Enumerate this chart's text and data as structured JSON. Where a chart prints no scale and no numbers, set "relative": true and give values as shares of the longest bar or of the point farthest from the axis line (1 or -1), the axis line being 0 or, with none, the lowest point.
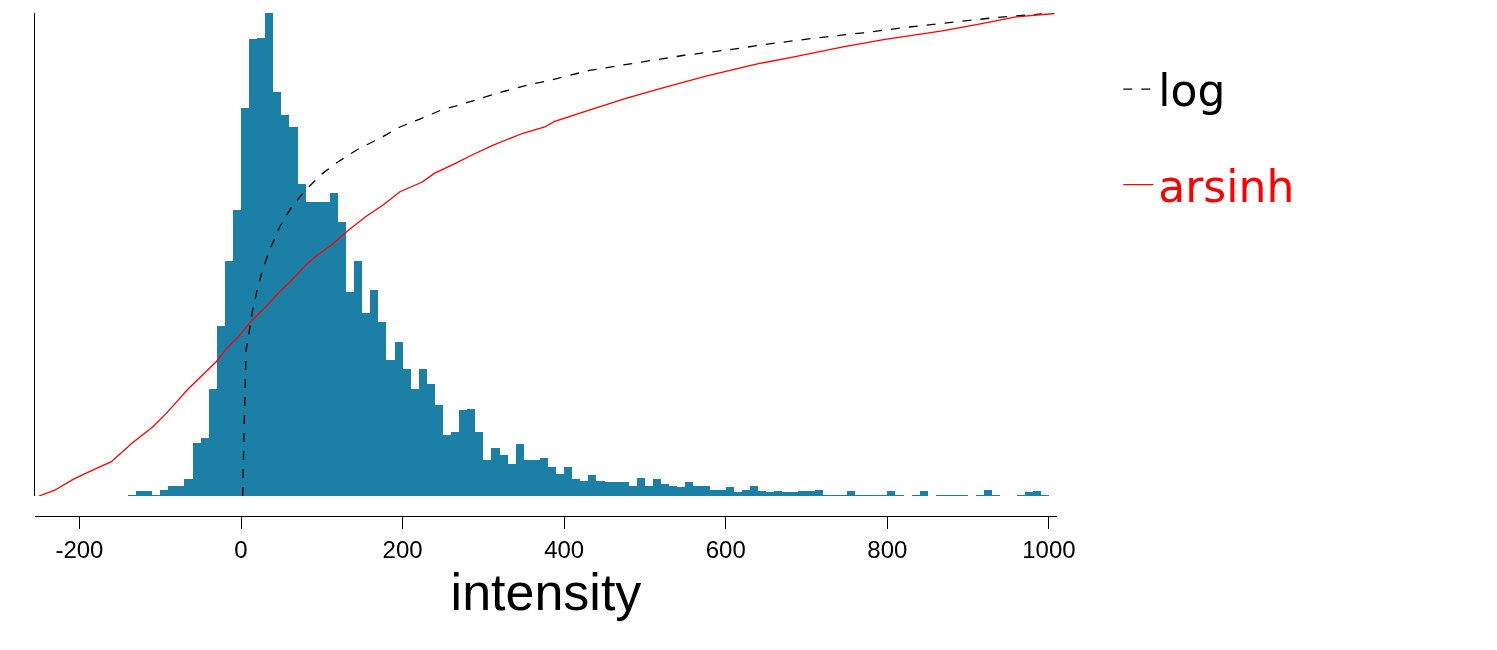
{
  "chart_data": {
    "type": "histogram",
    "relative": true,
    "xlabel": "intensity",
    "xlim": [
      -255,
      1010
    ],
    "xticks": [
      -200,
      0,
      200,
      400,
      600,
      800,
      1000
    ],
    "legend": "right",
    "color": "#1c7fa6",
    "bins": [
      -250,
      -240,
      -230,
      -220,
      -210,
      -200,
      -190,
      -180,
      -170,
      -160,
      -150,
      -140,
      -130,
      -120,
      -110,
      -100,
      -90,
      -80,
      -70,
      -60,
      -50,
      -40,
      -30,
      -20,
      -10,
      0,
      10,
      20,
      30,
      40,
      50,
      60,
      70,
      80,
      90,
      100,
      110,
      120,
      130,
      140,
      150,
      160,
      170,
      180,
      190,
      200,
      210,
      220,
      230,
      240,
      250,
      260,
      270,
      280,
      290,
      300,
      310,
      320,
      330,
      340,
      350,
      360,
      370,
      380,
      390,
      400,
      410,
      420,
      430,
      440,
      450,
      460,
      470,
      480,
      490,
      500,
      510,
      520,
      530,
      540,
      550,
      560,
      570,
      580,
      590,
      600,
      610,
      620,
      630,
      640,
      650,
      660,
      670,
      680,
      690,
      700,
      710,
      720,
      730,
      740,
      750,
      760,
      770,
      780,
      790,
      800,
      810,
      820,
      830,
      840,
      850,
      860,
      870,
      880,
      890,
      900,
      910,
      920,
      930,
      940,
      950,
      960,
      970,
      980,
      990,
      1000
    ],
    "values": [
      0,
      0,
      0,
      0,
      0,
      0,
      0,
      0,
      0,
      0,
      0,
      0.002,
      0.011,
      0.011,
      0.002,
      0.012,
      0.021,
      0.021,
      0.035,
      0.109,
      0.121,
      0.221,
      0.352,
      0.486,
      0.592,
      0.803,
      0.946,
      0.948,
      1,
      0.836,
      0.788,
      0.764,
      0.645,
      0.609,
      0.609,
      0.609,
      0.628,
      0.568,
      0.423,
      0.486,
      0.378,
      0.426,
      0.361,
      0.281,
      0.319,
      0.263,
      0.221,
      0.263,
      0.231,
      0.188,
      0.126,
      0.132,
      0.179,
      0.181,
      0.132,
      0.074,
      0.099,
      0.085,
      0.066,
      0.108,
      0.074,
      0.074,
      0.079,
      0.06,
      0.046,
      0.06,
      0.035,
      0.032,
      0.043,
      0.032,
      0.029,
      0.029,
      0.029,
      0.021,
      0.037,
      0.021,
      0.035,
      0.024,
      0.021,
      0.018,
      0.029,
      0.021,
      0.021,
      0.012,
      0.012,
      0.018,
      0.008,
      0.012,
      0.021,
      0.01,
      0.008,
      0.01,
      0.008,
      0.008,
      0.01,
      0.01,
      0.012,
      0.002,
      0.002,
      0.002,
      0.01,
      0.002,
      0.002,
      0.002,
      0.002,
      0.01,
      0.002,
      0,
      0.002,
      0.01,
      0,
      0.002,
      0.002,
      0.002,
      0.002,
      0,
      0.002,
      0.012,
      0.002,
      0,
      0,
      0.002,
      0.008,
      0.01,
      0.002
    ],
    "series": [
      {
        "name": "log",
        "type": "line",
        "color": "#000000",
        "line_style": "dashed",
        "x": [
          2,
          4.1,
          6.3,
          10.5,
          14.3,
          20.7,
          27.9,
          37.2,
          47.8,
          62.8,
          79.7,
          101,
          120.2,
          145.7,
          171.2,
          196.7,
          222.2,
          247.7,
          273.2,
          311.5,
          326,
          355.6,
          380.7,
          430.9,
          490.1,
          546.9,
          604,
          658.5,
          715.6,
          770.2,
          827.2,
          881.8,
          936.5,
          991.2
        ],
        "values": [
          0,
          0.157,
          0.302,
          0.344,
          0.385,
          0.432,
          0.475,
          0.516,
          0.557,
          0.599,
          0.633,
          0.668,
          0.692,
          0.719,
          0.74,
          0.764,
          0.781,
          0.799,
          0.811,
          0.831,
          0.838,
          0.851,
          0.86,
          0.881,
          0.897,
          0.912,
          0.924,
          0.937,
          0.949,
          0.959,
          0.971,
          0.981,
          0.991,
          0.998
        ]
      },
      {
        "name": "arsinh",
        "type": "line",
        "color": "#ff0000",
        "line_style": "solid",
        "x": [
          -250,
          -230.6,
          -207.3,
          -192.3,
          -160.5,
          -135,
          -109.4,
          -92.5,
          -79.7,
          -67,
          -49.9,
          -30.7,
          -18,
          -3.2,
          13.9,
          30.9,
          47.8,
          60.6,
          81.9,
          94.6,
          111.6,
          132.9,
          154.2,
          175.4,
          196.7,
          224.4,
          239.2,
          264.7,
          286,
          311.5,
          348.9,
          376.1,
          387.5,
          430.9,
          476.4,
          526.5,
          576.7,
          640.4,
          681.4,
          745.2,
          795.3,
          868.1,
          913.6,
          959.3,
          1007
        ],
        "values": [
          0,
          0.012,
          0.035,
          0.047,
          0.071,
          0.109,
          0.143,
          0.171,
          0.195,
          0.219,
          0.247,
          0.278,
          0.305,
          0.33,
          0.364,
          0.392,
          0.423,
          0.443,
          0.481,
          0.499,
          0.519,
          0.55,
          0.578,
          0.602,
          0.63,
          0.65,
          0.668,
          0.688,
          0.706,
          0.726,
          0.751,
          0.764,
          0.775,
          0.799,
          0.823,
          0.847,
          0.87,
          0.895,
          0.908,
          0.93,
          0.945,
          0.963,
          0.977,
          0.992,
          0.999
        ]
      }
    ]
  }
}
